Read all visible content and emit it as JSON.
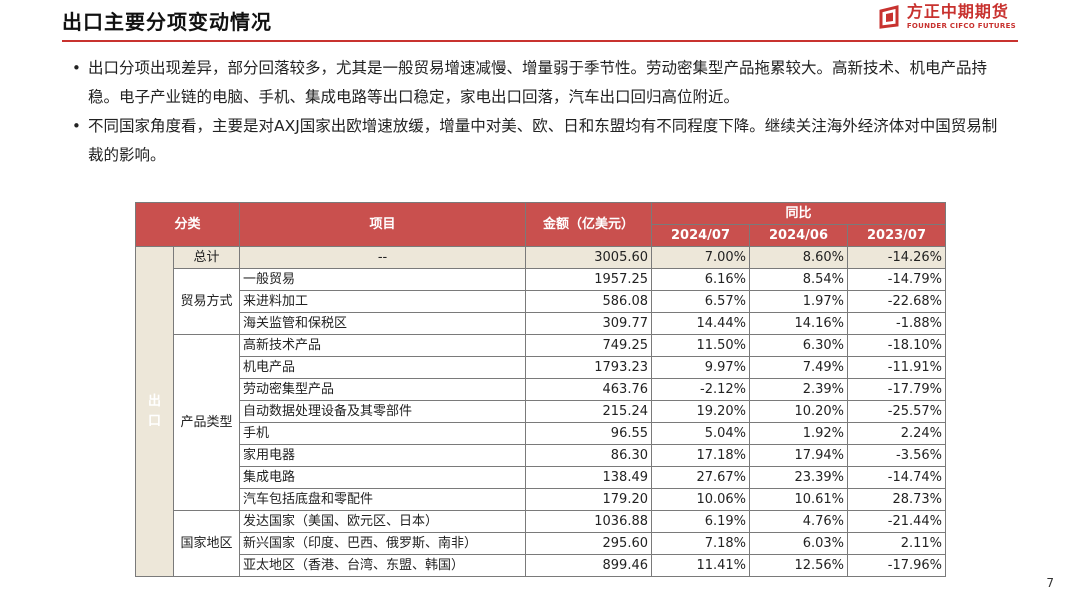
{
  "header": {
    "title": "出口主要分项变动情况",
    "logo_cn": "方正中期期货",
    "logo_en": "FOUNDER CIFCO FUTURES"
  },
  "bullets": [
    "出口分项出现差异，部分回落较多，尤其是一般贸易增速减慢、增量弱于季节性。劳动密集型产品拖累较大。高新技术、机电产品持稳。电子产业链的电脑、手机、集成电路等出口稳定，家电出口回落，汽车出口回归高位附近。",
    "不同国家角度看，主要是对AXJ国家出欧增速放缓，增量中对美、欧、日和东盟均有不同程度下降。继续关注海外经济体对中国贸易制裁的影响。"
  ],
  "table": {
    "headers": {
      "category": "分类",
      "item": "项目",
      "amount": "金额（亿美元）",
      "yoy": "同比",
      "periods": [
        "2024/07",
        "2024/06",
        "2023/07"
      ]
    },
    "main_category": "出\n口",
    "total": {
      "sub": "总计",
      "item": "--",
      "amount": "3005.60",
      "v1": "7.00%",
      "v2": "8.60%",
      "v3": "-14.26%"
    },
    "groups": [
      {
        "name": "贸易方式",
        "rows": [
          {
            "item": "一般贸易",
            "amount": "1957.25",
            "v1": "6.16%",
            "v2": "8.54%",
            "v3": "-14.79%"
          },
          {
            "item": "来进料加工",
            "amount": "586.08",
            "v1": "6.57%",
            "v2": "1.97%",
            "v3": "-22.68%"
          },
          {
            "item": "海关监管和保税区",
            "amount": "309.77",
            "v1": "14.44%",
            "v2": "14.16%",
            "v3": "-1.88%"
          }
        ]
      },
      {
        "name": "产品类型",
        "rows": [
          {
            "item": "高新技术产品",
            "amount": "749.25",
            "v1": "11.50%",
            "v2": "6.30%",
            "v3": "-18.10%"
          },
          {
            "item": "机电产品",
            "amount": "1793.23",
            "v1": "9.97%",
            "v2": "7.49%",
            "v3": "-11.91%"
          },
          {
            "item": "劳动密集型产品",
            "amount": "463.76",
            "v1": "-2.12%",
            "v2": "2.39%",
            "v3": "-17.79%"
          },
          {
            "item": "自动数据处理设备及其零部件",
            "amount": "215.24",
            "v1": "19.20%",
            "v2": "10.20%",
            "v3": "-25.57%"
          },
          {
            "item": "手机",
            "amount": "96.55",
            "v1": "5.04%",
            "v2": "1.92%",
            "v3": "2.24%"
          },
          {
            "item": "家用电器",
            "amount": "86.30",
            "v1": "17.18%",
            "v2": "17.94%",
            "v3": "-3.56%"
          },
          {
            "item": "集成电路",
            "amount": "138.49",
            "v1": "27.67%",
            "v2": "23.39%",
            "v3": "-14.74%"
          },
          {
            "item": "汽车包括底盘和零配件",
            "amount": "179.20",
            "v1": "10.06%",
            "v2": "10.61%",
            "v3": "28.73%"
          }
        ]
      },
      {
        "name": "国家地区",
        "rows": [
          {
            "item": "发达国家（美国、欧元区、日本）",
            "amount": "1036.88",
            "v1": "6.19%",
            "v2": "4.76%",
            "v3": "-21.44%"
          },
          {
            "item": "新兴国家（印度、巴西、俄罗斯、南非）",
            "amount": "295.60",
            "v1": "7.18%",
            "v2": "6.03%",
            "v3": "2.11%"
          },
          {
            "item": "亚太地区（香港、台湾、东盟、韩国）",
            "amount": "899.46",
            "v1": "11.41%",
            "v2": "12.56%",
            "v3": "-17.96%"
          }
        ]
      }
    ]
  },
  "page_number": "7",
  "colors": {
    "accent": "#c8322f",
    "header_fill": "#c9504e",
    "total_fill": "#ede7d9"
  }
}
